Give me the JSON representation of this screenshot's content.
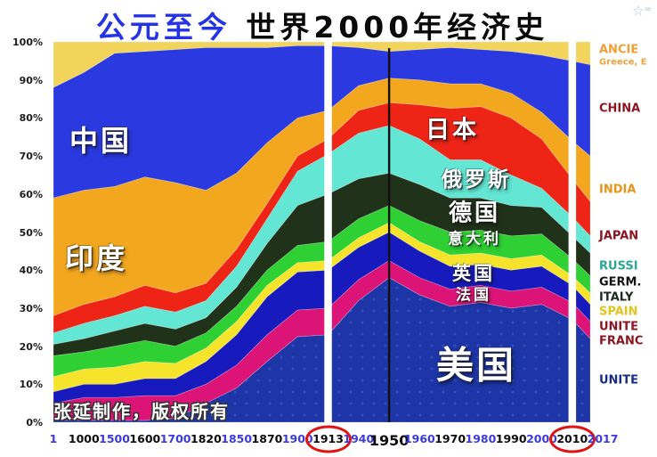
{
  "title": {
    "part1": "公元至今",
    "part2": "世界2000年经济史"
  },
  "corner_icon": {
    "star": "☆",
    "equals": "="
  },
  "watermark": "张延制作，版权所有",
  "y_axis": {
    "labels": [
      "100%",
      "90%",
      "80%",
      "70%",
      "60%",
      "50%",
      "40%",
      "30%",
      "20%",
      "10%",
      "0%"
    ]
  },
  "x_axis": {
    "ticks": [
      {
        "label": "1",
        "style": "blue"
      },
      {
        "label": "1000",
        "style": "black"
      },
      {
        "label": "1500",
        "style": "blue"
      },
      {
        "label": "1600",
        "style": "black"
      },
      {
        "label": "1700",
        "style": "blue"
      },
      {
        "label": "1820",
        "style": "black"
      },
      {
        "label": "1850",
        "style": "blue"
      },
      {
        "label": "1870",
        "style": "black"
      },
      {
        "label": "1900",
        "style": "blue"
      },
      {
        "label": "1913",
        "style": "black",
        "circled": true
      },
      {
        "label": "1940",
        "style": "blue"
      },
      {
        "label": "1950",
        "style": "black-big"
      },
      {
        "label": "1960",
        "style": "blue"
      },
      {
        "label": "1970",
        "style": "black"
      },
      {
        "label": "1980",
        "style": "blue"
      },
      {
        "label": "1990",
        "style": "black"
      },
      {
        "label": "2000",
        "style": "blue"
      },
      {
        "label": "2010",
        "style": "black",
        "circled": true
      },
      {
        "label": "2017",
        "style": "blue"
      }
    ]
  },
  "legend": {
    "items": [
      {
        "id": "ancient",
        "text": "ANCIE",
        "color": "#ef9f33",
        "size": "normal"
      },
      {
        "id": "ancient-sub",
        "text": "Greece, E",
        "color": "#efa43c",
        "size": "small"
      },
      {
        "id": "china",
        "text": "CHINA",
        "color": "#8c1522",
        "size": "normal"
      },
      {
        "id": "india",
        "text": "INDIA",
        "color": "#e8951a",
        "size": "normal"
      },
      {
        "id": "japan",
        "text": "JAPAN",
        "color": "#8c1522",
        "size": "normal"
      },
      {
        "id": "russia",
        "text": "RUSSI",
        "color": "#2aa596",
        "size": "normal"
      },
      {
        "id": "germany",
        "text": "GERM.",
        "color": "#111111",
        "size": "normal"
      },
      {
        "id": "italy",
        "text": "ITALY",
        "color": "#1d2a1d",
        "size": "normal"
      },
      {
        "id": "spain",
        "text": "SPAIN",
        "color": "#e2c41f",
        "size": "normal"
      },
      {
        "id": "uk",
        "text": "UNITE",
        "color": "#8c1522",
        "size": "normal"
      },
      {
        "id": "france",
        "text": "FRANC",
        "color": "#8c1522",
        "size": "normal"
      },
      {
        "id": "usa",
        "text": "UNITE",
        "color": "#182a85",
        "size": "normal"
      }
    ]
  },
  "chart_data": {
    "type": "area",
    "stacked": true,
    "units": "percent share of combined GDP",
    "ylim": [
      0,
      100
    ],
    "grid": false,
    "x": [
      1,
      1000,
      1500,
      1600,
      1700,
      1820,
      1850,
      1870,
      1900,
      1913,
      1940,
      1950,
      1960,
      1970,
      1980,
      1990,
      2000,
      2010,
      2017
    ],
    "series": [
      {
        "id": "usa",
        "label_cn": "美国",
        "color": "#1d35a6",
        "values": [
          0.5,
          0.5,
          0.5,
          0.5,
          1,
          5,
          9,
          16,
          22.5,
          23,
          32,
          38,
          33.5,
          30.5,
          31.5,
          30,
          31,
          27,
          22
        ]
      },
      {
        "id": "france",
        "label_cn": "法国",
        "color": "#dd1478",
        "values": [
          4.5,
          6,
          6,
          6.5,
          6,
          5,
          6,
          7,
          7,
          7,
          5.5,
          4.5,
          4.5,
          4.5,
          4.5,
          4.5,
          4.5,
          4.5,
          4.5
        ]
      },
      {
        "id": "uk",
        "label_cn": "英国",
        "color": "#171bbd",
        "values": [
          3,
          3.5,
          3.5,
          4.5,
          4.5,
          6,
          8,
          10,
          10,
          10,
          8.5,
          7.5,
          7,
          6,
          5.5,
          5.5,
          5.5,
          4.5,
          4.5
        ]
      },
      {
        "id": "spain",
        "label_cn": "",
        "color": "#f6e42c",
        "values": [
          4,
          4,
          4.5,
          4.5,
          4,
          3.5,
          3.5,
          3,
          2.5,
          2.5,
          2.5,
          2.5,
          2.5,
          3,
          3,
          3,
          3,
          2.5,
          3
        ]
      },
      {
        "id": "italy",
        "label_cn": "意大利",
        "color": "#2fd033",
        "values": [
          5.5,
          4.5,
          5.5,
          5.5,
          4.5,
          4,
          4,
          4,
          4.5,
          5,
          5,
          4.5,
          5.5,
          6,
          6,
          6,
          5.5,
          4.5,
          4.5
        ]
      },
      {
        "id": "germany",
        "label_cn": "德国",
        "color": "#20321a",
        "values": [
          3,
          3.5,
          4,
          4.5,
          4.5,
          4,
          5,
          7,
          10.5,
          12.5,
          10.5,
          8.5,
          9.5,
          9,
          8.5,
          8,
          7,
          6,
          6
        ]
      },
      {
        "id": "russia",
        "label_cn": "俄罗斯",
        "color": "#63e6d3",
        "values": [
          3,
          4,
          4,
          4.5,
          4.5,
          4.5,
          5.5,
          6.5,
          9,
          10.5,
          12,
          12.5,
          12,
          10,
          10,
          8,
          5,
          5,
          4.5
        ]
      },
      {
        "id": "japan",
        "label_cn": "日本",
        "color": "#ee2417",
        "values": [
          4.5,
          5,
          5,
          5.5,
          5,
          4.5,
          4.5,
          4,
          4,
          4,
          6,
          6,
          9,
          13.5,
          14,
          15,
          13,
          10,
          9
        ]
      },
      {
        "id": "india",
        "label_cn": "印度",
        "color": "#f2a71f",
        "values": [
          31,
          30,
          29,
          28.5,
          29,
          24.5,
          20,
          16,
          10,
          7.5,
          6.5,
          6.5,
          6.5,
          6.5,
          6,
          6.5,
          7,
          10,
          12
        ]
      },
      {
        "id": "china",
        "label_cn": "中国",
        "color": "#2a3ae0",
        "values": [
          29,
          31,
          35,
          33,
          35,
          37.5,
          33,
          25,
          19,
          17,
          10,
          7,
          8,
          9.5,
          9,
          11,
          15,
          21,
          24
        ]
      },
      {
        "id": "ancient",
        "label_cn": "",
        "color": "#f2d35c",
        "values": [
          12,
          8,
          3,
          2.5,
          2,
          1.5,
          1.5,
          1.5,
          1,
          1,
          1.5,
          2.5,
          2,
          1.5,
          2,
          2.5,
          3.5,
          5,
          6
        ]
      }
    ],
    "vertical_markers": [
      {
        "year": 1913,
        "style": "white"
      },
      {
        "year": 1950,
        "style": "black"
      },
      {
        "year": 2010,
        "style": "white"
      }
    ]
  }
}
